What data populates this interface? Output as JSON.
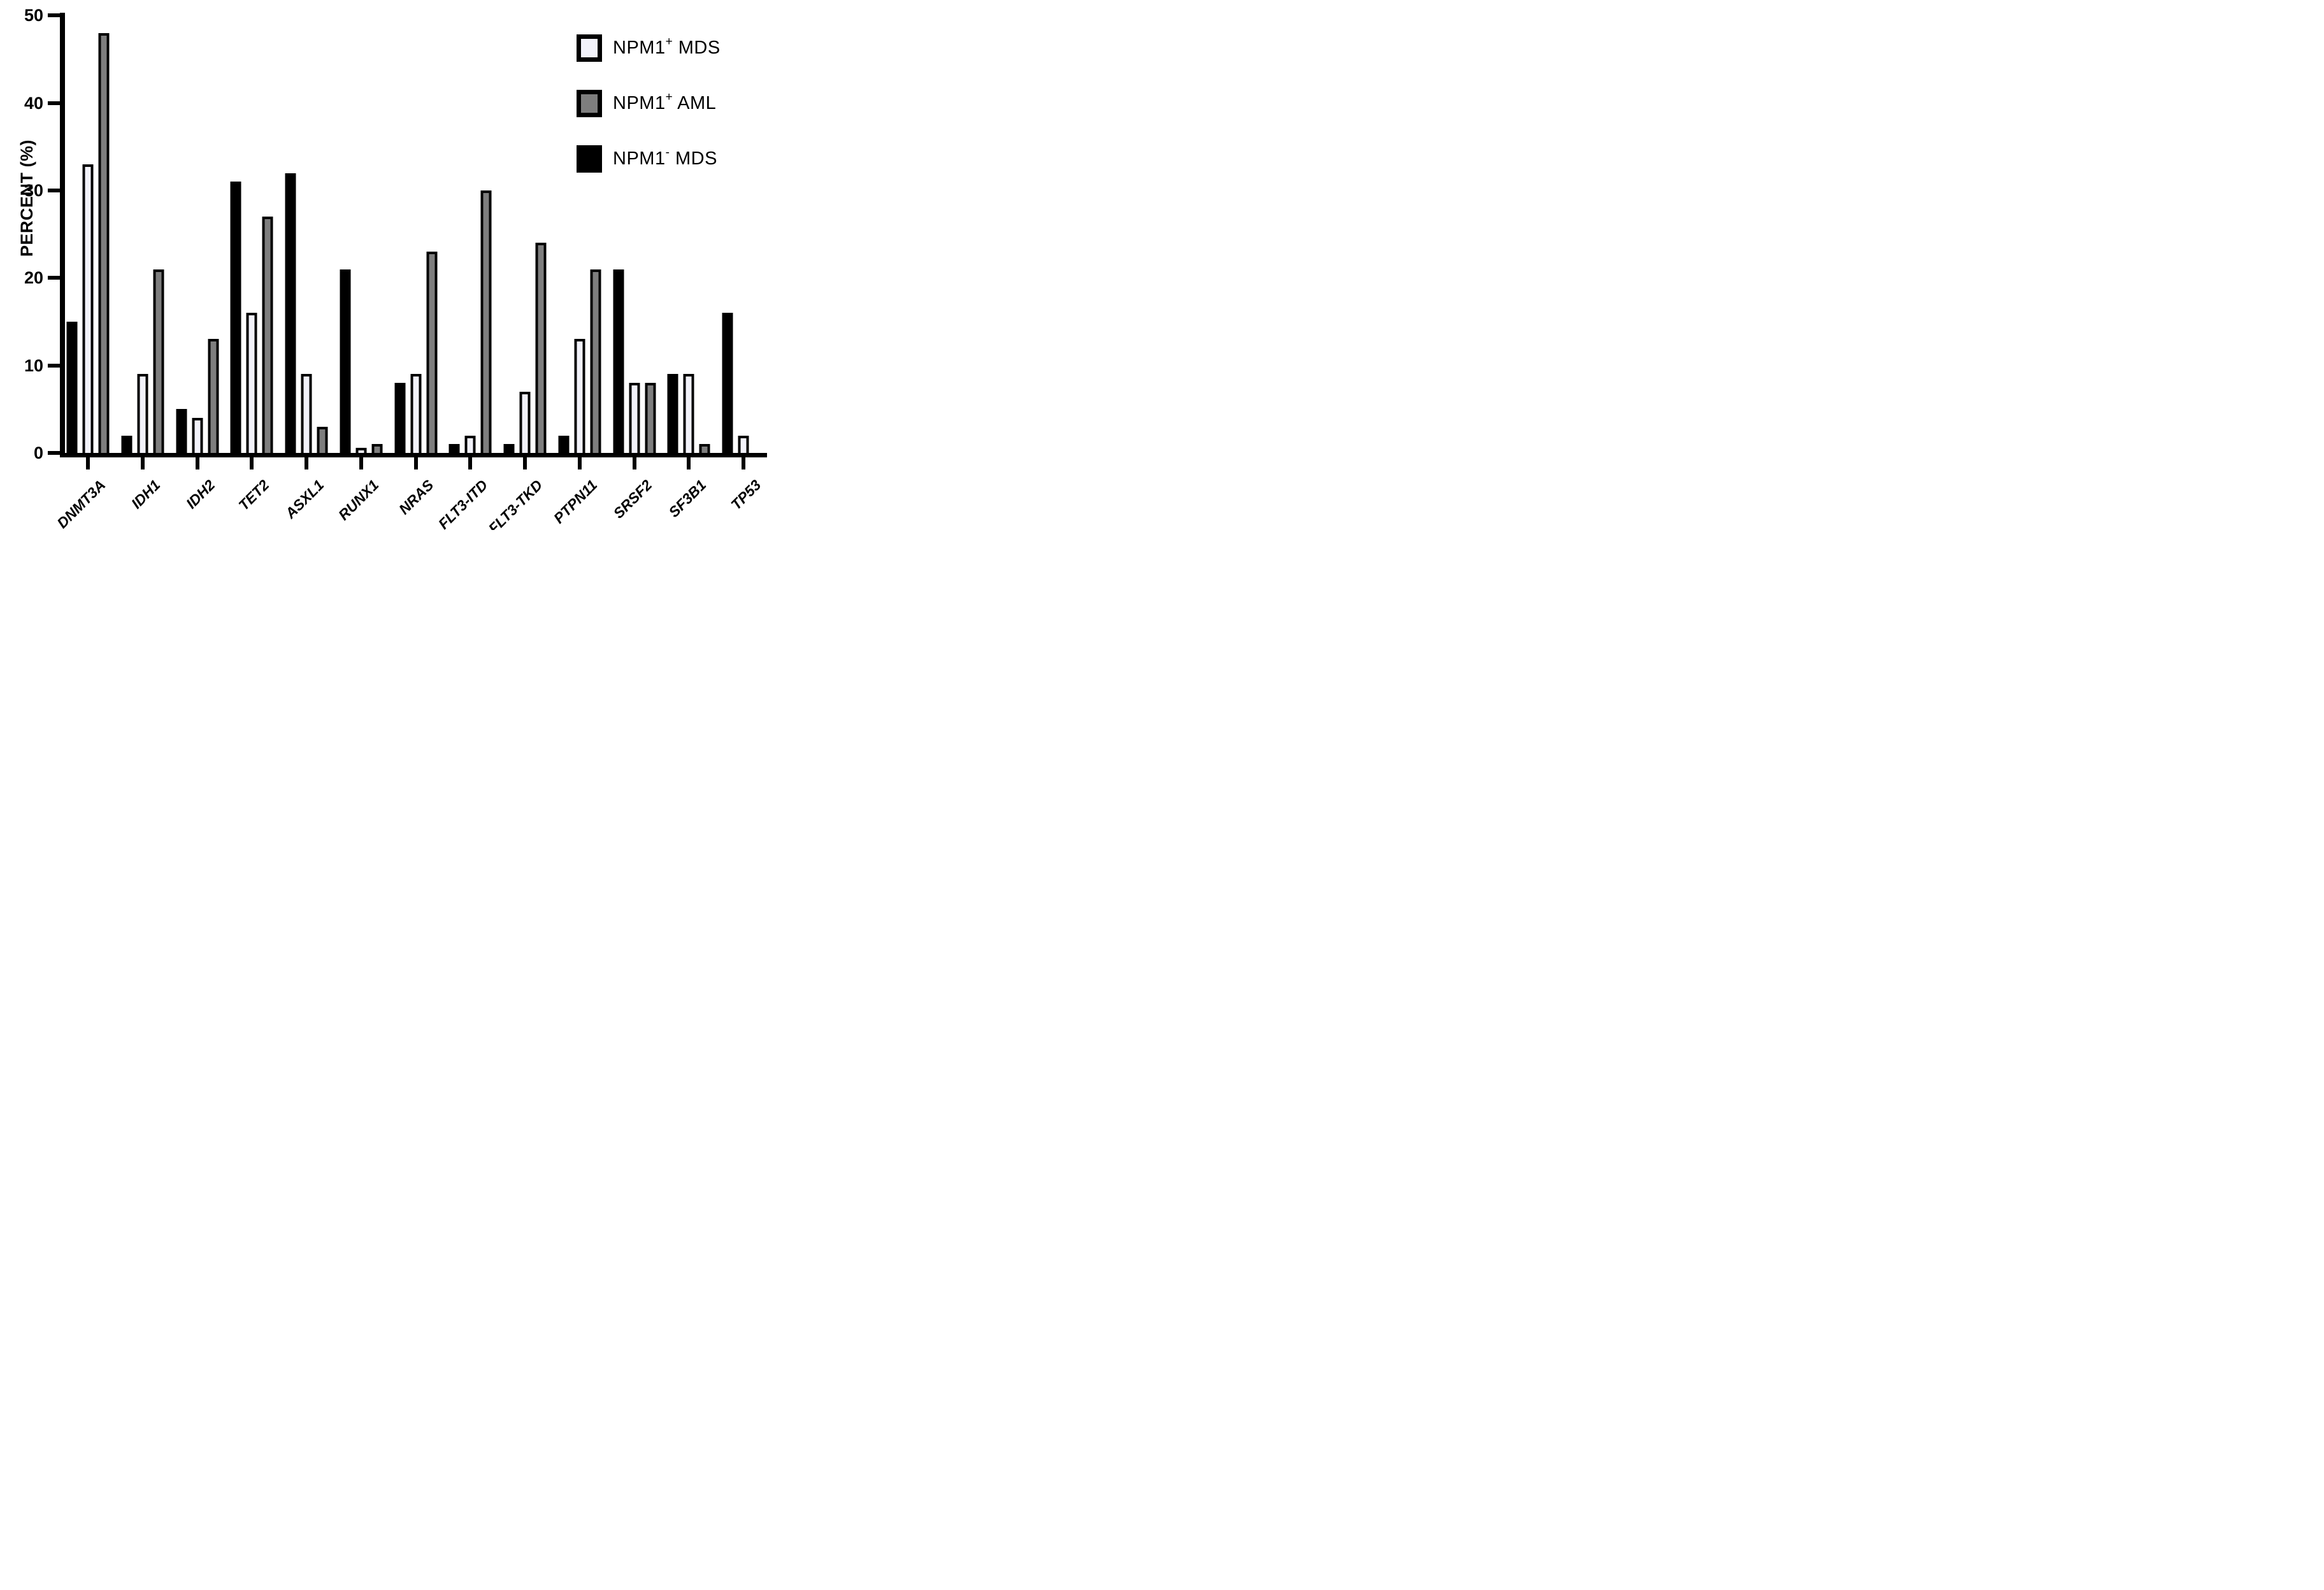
{
  "chart_data": {
    "type": "bar",
    "title": "",
    "xlabel": "",
    "ylabel": "PERCENT (%)",
    "ylim": [
      0,
      50
    ],
    "yticks": [
      0,
      10,
      20,
      30,
      40,
      50
    ],
    "grid": false,
    "legend_position": "top-right",
    "categories": [
      "DNMT3A",
      "IDH1",
      "IDH2",
      "TET2",
      "ASXL1",
      "RUNX1",
      "NRAS",
      "FLT3-ITD",
      "FLT3-TKD",
      "PTPN11",
      "SRSF2",
      "SF3B1",
      "TP53"
    ],
    "series": [
      {
        "id": "npm1_pos_mds",
        "name": "NPM1+ MDS",
        "label_base": "NPM1",
        "label_sup": "+",
        "label_rest": " MDS",
        "fill": "#f2f2fa",
        "border": "#000000",
        "values": [
          33,
          9,
          4,
          16,
          9,
          0.5,
          9,
          2,
          7,
          13,
          8,
          9,
          2
        ]
      },
      {
        "id": "npm1_pos_aml",
        "name": "NPM1+ AML",
        "label_base": "NPM1",
        "label_sup": "+",
        "label_rest": " AML",
        "fill": "#7e7e7e",
        "border": "#000000",
        "values": [
          48,
          21,
          13,
          27,
          3,
          1,
          23,
          30,
          24,
          21,
          8,
          1,
          0
        ]
      },
      {
        "id": "npm1_neg_mds",
        "name": "NPM1- MDS",
        "label_base": "NPM1",
        "label_sup": "-",
        "label_rest": " MDS",
        "fill": "#000000",
        "border": "#000000",
        "values": [
          15,
          2,
          5,
          31,
          32,
          21,
          8,
          1,
          1,
          2,
          21,
          9,
          16
        ]
      }
    ],
    "bar_order": [
      "npm1_neg_mds",
      "npm1_pos_mds",
      "npm1_pos_aml"
    ],
    "axis_color": "#000000"
  }
}
